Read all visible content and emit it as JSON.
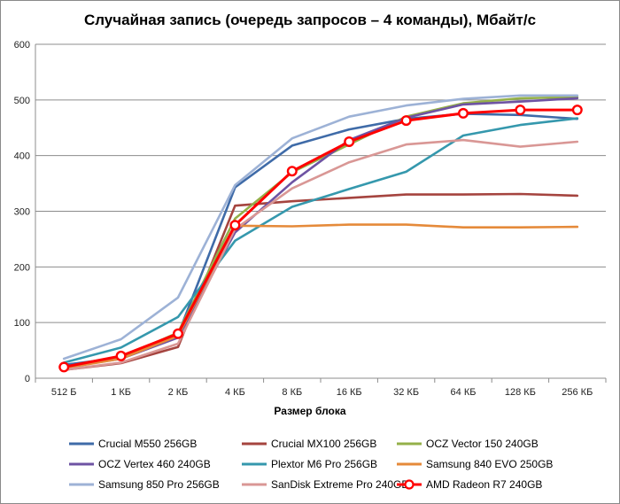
{
  "chart_data": {
    "type": "line",
    "title": "Случайная запись (очередь запросов – 4 команды), Мбайт/с",
    "xlabel": "Размер блока",
    "ylabel": "",
    "ylim": [
      0,
      600
    ],
    "yticks": [
      0,
      100,
      200,
      300,
      400,
      500,
      600
    ],
    "grid": true,
    "legend_position": "bottom",
    "categories": [
      "512 Б",
      "1 КБ",
      "2 КБ",
      "4 КБ",
      "8 КБ",
      "16 КБ",
      "32 КБ",
      "64 КБ",
      "128 КБ",
      "256 КБ"
    ],
    "series": [
      {
        "name": "Crucial M550 256GB",
        "color": "#3F6BA8",
        "markers": false,
        "values": [
          24,
          37,
          78,
          343,
          418,
          447,
          466,
          475,
          473,
          466
        ]
      },
      {
        "name": "Crucial MX100 256GB",
        "color": "#A5443F",
        "markers": false,
        "values": [
          15,
          27,
          56,
          310,
          318,
          324,
          330,
          330,
          331,
          328
        ]
      },
      {
        "name": "OCZ Vector 150 240GB",
        "color": "#94B049",
        "markers": false,
        "values": [
          19,
          37,
          82,
          287,
          370,
          420,
          470,
          494,
          503,
          505
        ]
      },
      {
        "name": "OCZ Vertex 460 240GB",
        "color": "#6E53A3",
        "markers": false,
        "values": [
          19,
          35,
          73,
          262,
          352,
          428,
          468,
          492,
          497,
          503
        ]
      },
      {
        "name": "Plextor M6 Pro 256GB",
        "color": "#3598AD",
        "markers": false,
        "values": [
          28,
          55,
          110,
          247,
          308,
          340,
          371,
          436,
          455,
          467
        ]
      },
      {
        "name": "Samsung 840 EVO 250GB",
        "color": "#E58A3A",
        "markers": false,
        "values": [
          18,
          35,
          76,
          274,
          273,
          276,
          276,
          271,
          271,
          272
        ]
      },
      {
        "name": "Samsung 850 Pro 256GB",
        "color": "#9DB2D6",
        "markers": false,
        "values": [
          35,
          70,
          145,
          347,
          431,
          470,
          490,
          502,
          508,
          508
        ]
      },
      {
        "name": "SanDisk Extreme Pro 240GB",
        "color": "#D99795",
        "markers": false,
        "values": [
          15,
          28,
          62,
          268,
          341,
          388,
          420,
          428,
          416,
          425
        ]
      },
      {
        "name": "AMD Radeon R7 240GB",
        "color": "#FF0000",
        "markers": true,
        "values": [
          20,
          40,
          80,
          275,
          372,
          425,
          463,
          476,
          482,
          482
        ]
      }
    ]
  }
}
